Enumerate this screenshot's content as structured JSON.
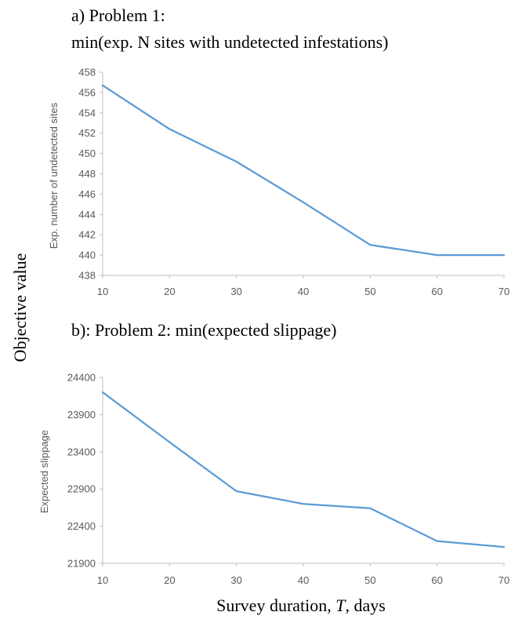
{
  "figure": {
    "y_axis_label": "Objective value",
    "x_axis_label_prefix": "Survey duration, ",
    "x_axis_label_var": "T",
    "x_axis_label_suffix": ", days",
    "line_color": "#5B9BD5",
    "axis_color": "#BFBFBF",
    "tick_text_color": "#595959"
  },
  "chart_data": [
    {
      "type": "line",
      "title_line1": "a) Problem 1:",
      "title_line2": "min(exp. N sites with undetected infestations)",
      "xlabel": "",
      "ylabel": "Exp. number of undetected sites",
      "x": [
        10,
        20,
        30,
        40,
        50,
        60,
        70
      ],
      "y": [
        456.7,
        452.4,
        449.2,
        445.2,
        441.0,
        440.0,
        440.0
      ],
      "xlim": [
        10,
        70
      ],
      "ylim": [
        438,
        458
      ],
      "yticks": [
        438,
        440,
        442,
        444,
        446,
        448,
        450,
        452,
        454,
        456,
        458
      ],
      "xticks": [
        10,
        20,
        30,
        40,
        50,
        60,
        70
      ],
      "grid": false,
      "legend": "none"
    },
    {
      "type": "line",
      "title_line1": "b): Problem 2: min(expected slippage)",
      "title_line2": "",
      "xlabel": "",
      "ylabel": "Expected slippage",
      "x": [
        10,
        20,
        30,
        40,
        50,
        60,
        70
      ],
      "y": [
        24200,
        23530,
        22870,
        22700,
        22640,
        22200,
        22120
      ],
      "xlim": [
        10,
        70
      ],
      "ylim": [
        21900,
        24400
      ],
      "yticks": [
        21900,
        22400,
        22900,
        23400,
        23900,
        24400
      ],
      "xticks": [
        10,
        20,
        30,
        40,
        50,
        60,
        70
      ],
      "grid": false,
      "legend": "none"
    }
  ]
}
